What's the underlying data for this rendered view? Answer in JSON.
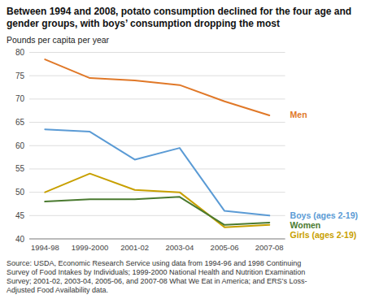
{
  "chart_data": {
    "type": "line",
    "title": "Between 1994 and 2008, potato consumption declined for the four age and gender groups, with boys’ consumption dropping the most",
    "y_label": "Pounds per capita per year",
    "source": "Source: USDA, Economic Research Service using data from 1994-96 and 1998 Continuing\nSurvey of Food Intakes by Individuals; 1999-2000 National Health and Nutrition Examination\nSurvey; 2001-02, 2003-04, 2005-06, and 2007-08 What We Eat in America; and ERS’s Loss-\nAdjusted Food Availability data.",
    "categories": [
      "1994-98",
      "1999-2000",
      "2001-02",
      "2003-04",
      "2005-06",
      "2007-08"
    ],
    "series": [
      {
        "name": "Men",
        "color": "#E07828",
        "values": [
          78.5,
          74.5,
          74.0,
          73.0,
          69.5,
          66.5
        ]
      },
      {
        "name": "Boys (ages 2-19)",
        "color": "#5B9BD5",
        "values": [
          63.5,
          63.0,
          57.0,
          59.5,
          46.0,
          45.0
        ]
      },
      {
        "name": "Girls (ages 2-19)",
        "color": "#C8A000",
        "values": [
          50.0,
          54.0,
          50.5,
          50.0,
          42.5,
          43.0
        ]
      },
      {
        "name": "Women",
        "color": "#4A7A30",
        "values": [
          48.0,
          48.5,
          48.5,
          49.0,
          43.0,
          43.5
        ]
      }
    ],
    "ylim": [
      40,
      80
    ],
    "yticks": [
      40,
      45,
      50,
      55,
      60,
      65,
      70,
      75,
      80
    ],
    "grid": true
  }
}
